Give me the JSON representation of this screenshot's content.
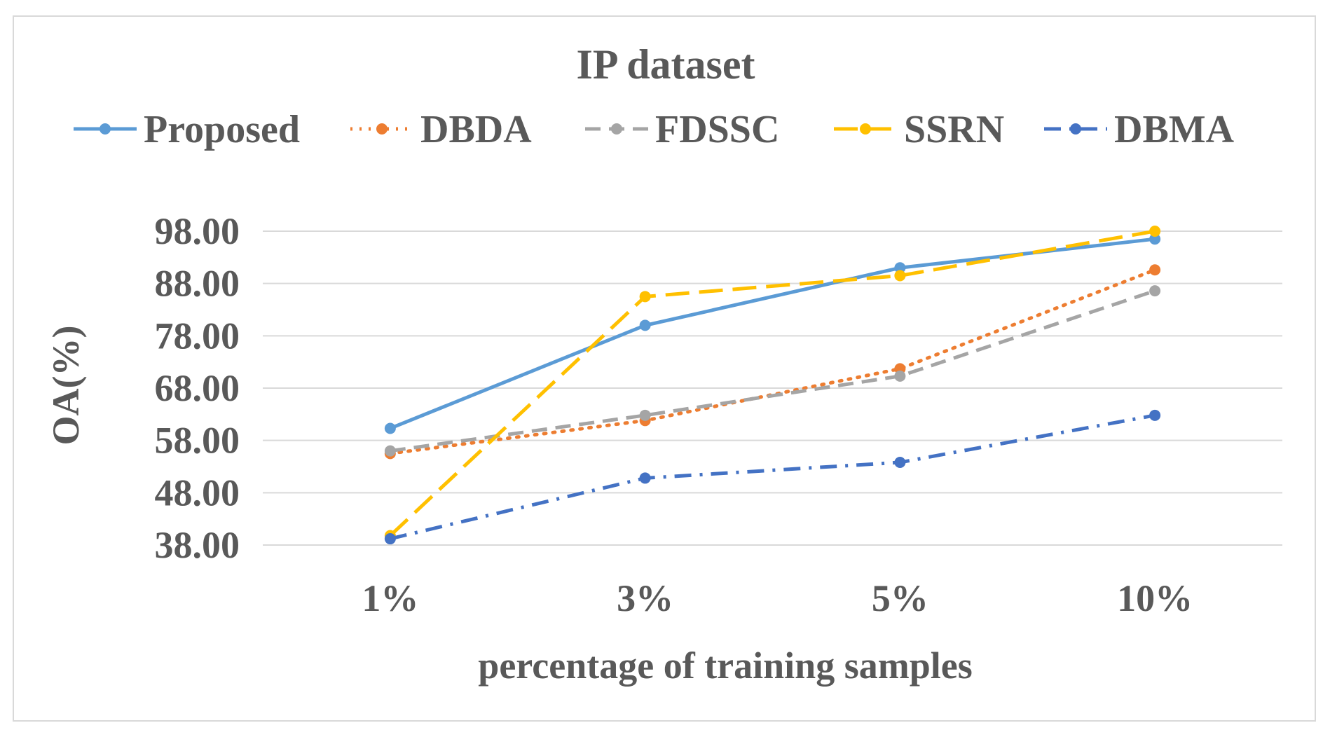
{
  "chart_data": {
    "type": "line",
    "title": "IP dataset",
    "xlabel": "percentage of training samples",
    "ylabel": "OA(%)",
    "categories": [
      "1%",
      "3%",
      "5%",
      "10%"
    ],
    "yticks": [
      "38.00",
      "48.00",
      "58.00",
      "68.00",
      "78.00",
      "88.00",
      "98.00"
    ],
    "ylim": [
      38,
      98
    ],
    "grid": true,
    "legend_position": "top",
    "series": [
      {
        "name": "Proposed",
        "values": [
          60.3,
          80.0,
          91.0,
          96.5
        ],
        "color": "#5b9bd5",
        "dash": "solid"
      },
      {
        "name": "DBDA",
        "values": [
          55.5,
          61.8,
          71.7,
          90.6
        ],
        "color": "#ed7d31",
        "dash": "dot"
      },
      {
        "name": "FDSSC",
        "values": [
          56.0,
          62.8,
          70.3,
          86.6
        ],
        "color": "#a5a5a5",
        "dash": "dash"
      },
      {
        "name": "SSRN",
        "values": [
          39.8,
          85.5,
          89.5,
          98.0
        ],
        "color": "#ffc000",
        "dash": "longdash"
      },
      {
        "name": "DBMA",
        "values": [
          39.2,
          50.8,
          53.8,
          62.8
        ],
        "color": "#4472c4",
        "dash": "dashdot"
      }
    ]
  }
}
